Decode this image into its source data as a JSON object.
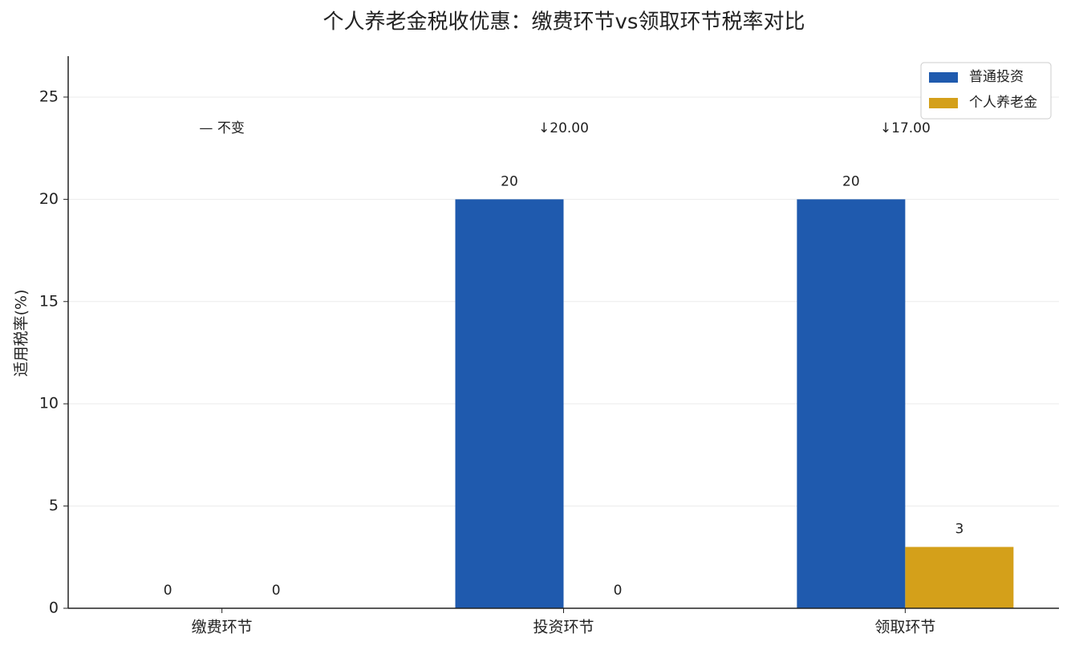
{
  "chart_data": {
    "type": "bar",
    "title": "个人养老金税收优惠：缴费环节vs领取环节税率对比",
    "y_label": "适用税率(%)",
    "categories": [
      "缴费环节",
      "投资环节",
      "领取环节"
    ],
    "series": [
      {
        "name": "普通投资",
        "color": "#1f5aae",
        "values": [
          0,
          20,
          20
        ]
      },
      {
        "name": "个人养老金",
        "color": "#d4a01a",
        "values": [
          0,
          0,
          3
        ]
      }
    ],
    "annotations": [
      {
        "text": "— 不变",
        "color": "#808080"
      },
      {
        "text": "↓20.00",
        "color": "#d62728"
      },
      {
        "text": "↓17.00",
        "color": "#d62728"
      }
    ],
    "ylim": [
      0,
      27
    ],
    "yticks": [
      0,
      5,
      10,
      15,
      20,
      25
    ],
    "grid": true,
    "legend": "upper right"
  }
}
